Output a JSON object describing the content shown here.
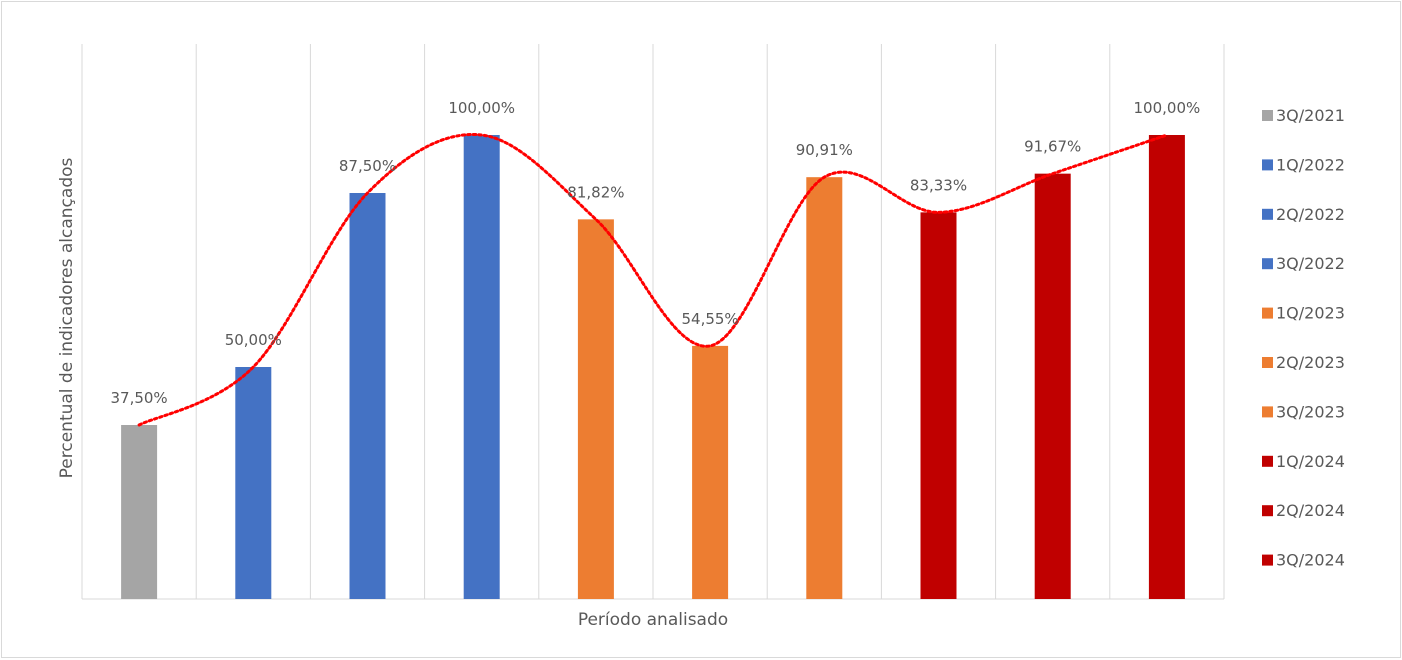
{
  "chart_data": {
    "type": "bar",
    "title": "",
    "xlabel": "Período analisado",
    "ylabel": "Percentual de indicadores alcançados",
    "ylim": [
      0,
      100
    ],
    "grid": "vertical",
    "legend_position": "right",
    "categories": [
      "3Q/2021",
      "1Q/2022",
      "2Q/2022",
      "3Q/2022",
      "1Q/2023",
      "2Q/2023",
      "3Q/2023",
      "1Q/2024",
      "2Q/2024",
      "3Q/2024"
    ],
    "values": [
      37.5,
      50.0,
      87.5,
      100.0,
      81.82,
      54.55,
      90.91,
      83.33,
      91.67,
      100.0
    ],
    "data_labels": [
      "37,50%",
      "50,00%",
      "87,50%",
      "100,00%",
      "81,82%",
      "54,55%",
      "90,91%",
      "83,33%",
      "91,67%",
      "100,00%"
    ],
    "colors": [
      "#a5a5a5",
      "#4472c4",
      "#4472c4",
      "#4472c4",
      "#ed7d31",
      "#ed7d31",
      "#ed7d31",
      "#c00000",
      "#c00000",
      "#c00000"
    ],
    "trendline": {
      "style": "dotted",
      "color": "#ff0000"
    }
  }
}
